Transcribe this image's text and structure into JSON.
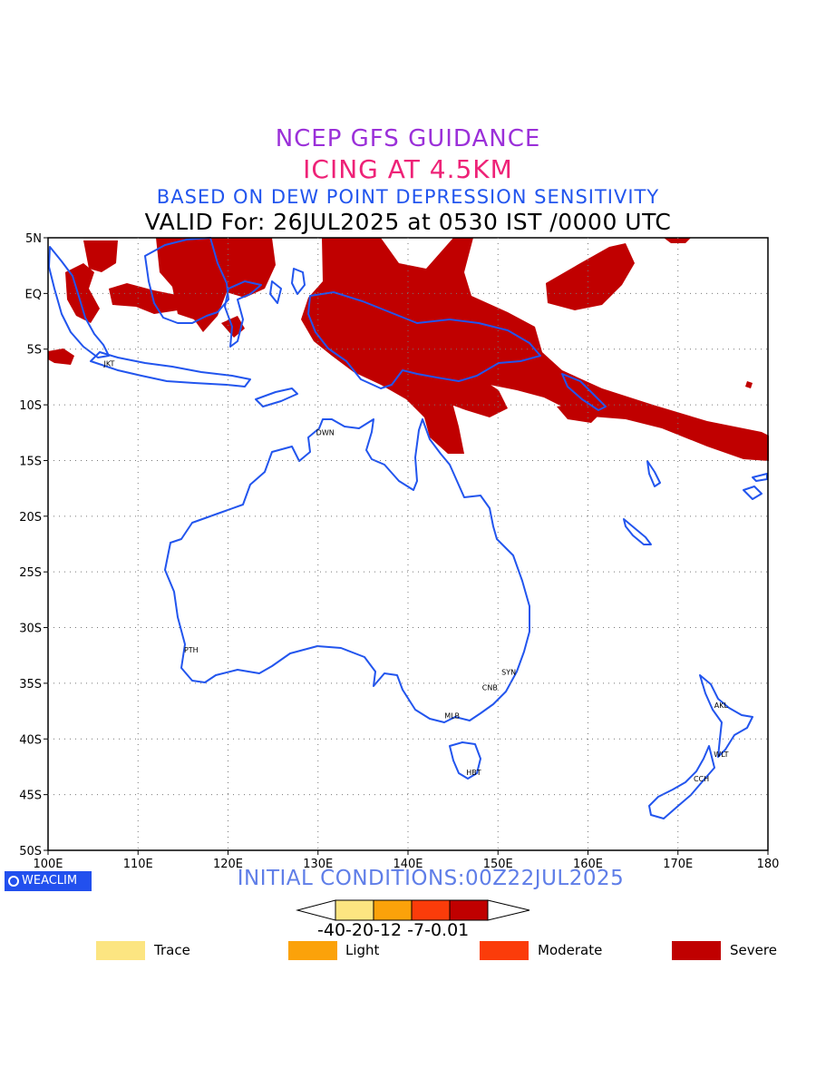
{
  "titles": {
    "line1": "NCEP GFS GUIDANCE",
    "line2": "ICING AT 4.5KM",
    "line3": "BASED ON DEW POINT DEPRESSION SENSITIVITY",
    "line4": "VALID For: 26JUL2025 at 0530 IST /0000 UTC"
  },
  "lat_labels": [
    "5N",
    "EQ",
    "5S",
    "10S",
    "15S",
    "20S",
    "25S",
    "30S",
    "35S",
    "40S",
    "45S",
    "50S"
  ],
  "lon_labels": [
    "100E",
    "110E",
    "120E",
    "130E",
    "140E",
    "150E",
    "160E",
    "170E",
    "180"
  ],
  "cities": [
    {
      "code": "JKT",
      "lon": 106.8,
      "lat": -6.2
    },
    {
      "code": "DWN",
      "lon": 130.8,
      "lat": -12.4
    },
    {
      "code": "PTH",
      "lon": 115.9,
      "lat": -31.9
    },
    {
      "code": "SYN",
      "lon": 151.2,
      "lat": -33.9
    },
    {
      "code": "CNB",
      "lon": 149.1,
      "lat": -35.3
    },
    {
      "code": "MLB",
      "lon": 144.9,
      "lat": -37.8
    },
    {
      "code": "HBT",
      "lon": 147.3,
      "lat": -42.9
    },
    {
      "code": "AKL",
      "lon": 174.8,
      "lat": -36.9
    },
    {
      "code": "WLT",
      "lon": 174.8,
      "lat": -41.3
    },
    {
      "code": "CCH",
      "lon": 172.6,
      "lat": -43.5
    }
  ],
  "logo_text": "WEACLIM",
  "initial_conditions": "INITIAL CONDITIONS:00Z22JUL2025",
  "colorbar": {
    "colors": [
      "#fce581",
      "#fba20a",
      "#fb3c0a",
      "#c00000"
    ],
    "labels": "-40-20-12 -7-0.01"
  },
  "legend": [
    {
      "label": "Trace",
      "color": "#fce581"
    },
    {
      "label": "Light",
      "color": "#fba20a"
    },
    {
      "label": "Moderate",
      "color": "#fb3c0a"
    },
    {
      "label": "Severe",
      "color": "#c00000"
    }
  ],
  "colors": {
    "coastline": "#2255ee",
    "severe_icing": "#c00000"
  }
}
